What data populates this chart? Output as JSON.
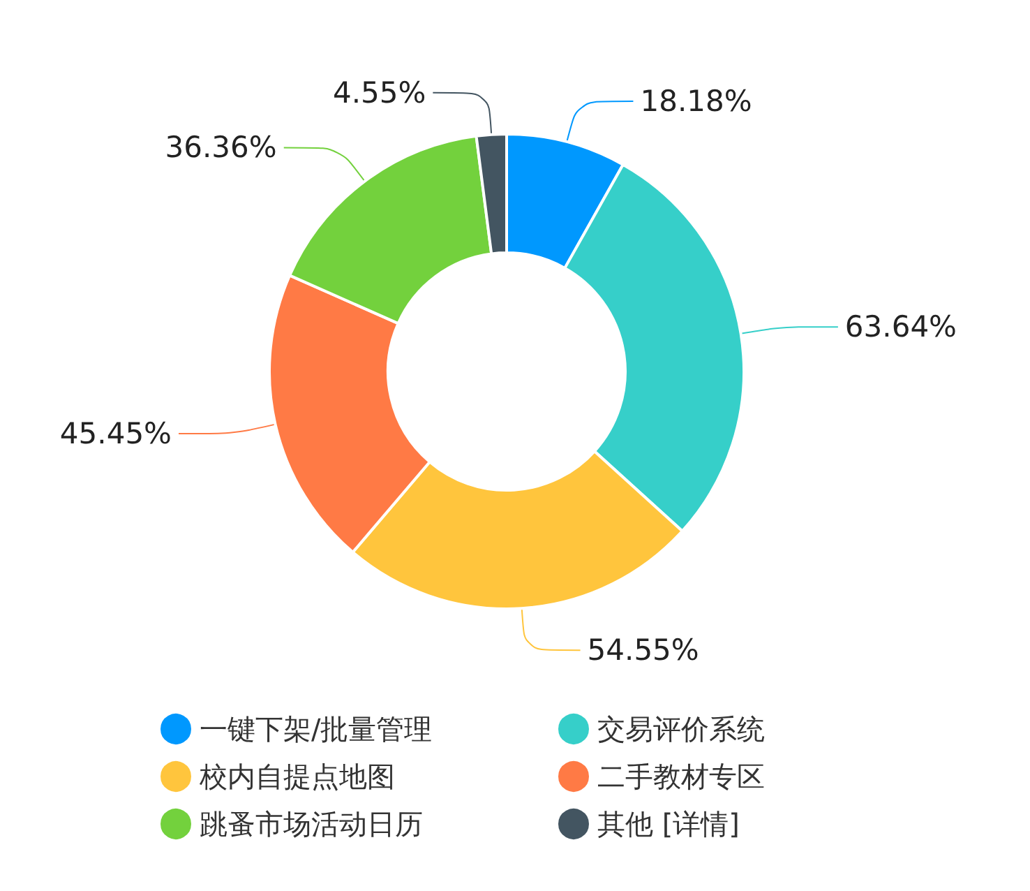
{
  "chart_data": {
    "type": "donut",
    "categories": [
      "一键下架/批量管理",
      "交易评价系统",
      "校内自提点地图",
      "二手教材专区",
      "跳蚤市场活动日历",
      "其他 [详情]"
    ],
    "values": [
      18.18,
      63.64,
      54.55,
      45.45,
      36.36,
      4.55
    ],
    "value_labels": [
      "18.18%",
      "63.64%",
      "54.55%",
      "45.45%",
      "36.36%",
      "4.55%"
    ],
    "colors": [
      "#0098fe",
      "#36cfc9",
      "#ffc53d",
      "#ff7a45",
      "#73d13d",
      "#435561"
    ],
    "legend": "bottom"
  }
}
